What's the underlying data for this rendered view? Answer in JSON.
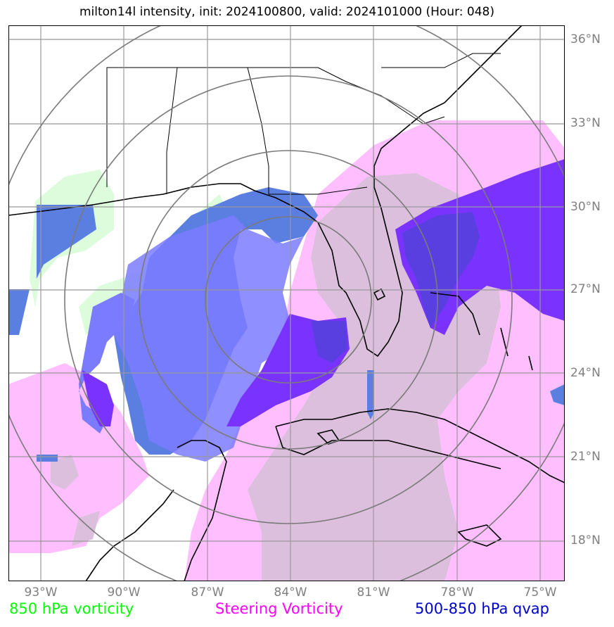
{
  "title": "milton14l intensity, init: 2024100800, valid: 2024101000 (Hour: 048)",
  "lat_labels": [
    "36°N",
    "33°N",
    "30°N",
    "27°N",
    "24°N",
    "21°N",
    "18°N"
  ],
  "lon_labels": [
    "93°W",
    "90°W",
    "87°W",
    "84°W",
    "81°W",
    "78°W",
    "75°W"
  ],
  "legend": {
    "vorticity_850": "850 hPa vorticity",
    "steering": "Steering Vorticity",
    "qvap": "500-850 hPa qvap"
  },
  "colors": {
    "vorticity_850": "#00ff00",
    "steering": "#ff00ff",
    "qvap": "#0000cd",
    "light_green_fill": "#dcfcdc",
    "pink_fill": "#ffbfff",
    "mauve_fill": "#dbbfdc",
    "blue_fill": "#5b7fe0",
    "lightblue_fill": "#7b7bff",
    "purple_fill": "#7a33ff",
    "darkpurple_fill": "#5a3fe0",
    "grid": "#888888"
  }
}
